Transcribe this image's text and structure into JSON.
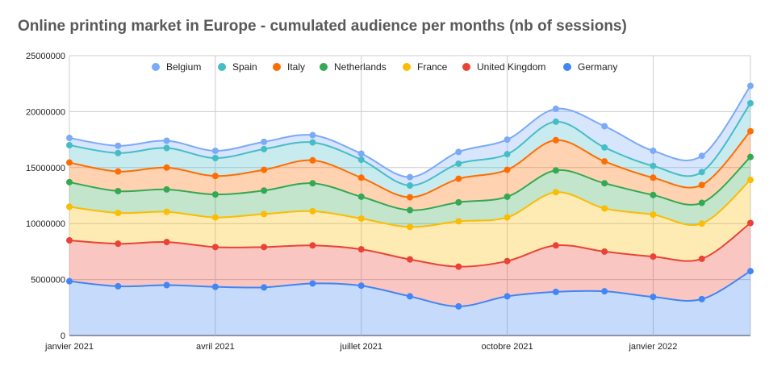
{
  "chart_data": {
    "type": "area",
    "stacked": true,
    "smooth": true,
    "title": "Online printing market in Europe - cumulated audience per months (nb of sessions)",
    "xlabel": "",
    "ylabel": "",
    "ylim": [
      0,
      25000000
    ],
    "yticks": [
      0,
      5000000,
      10000000,
      15000000,
      20000000,
      25000000
    ],
    "ytick_labels": [
      "0",
      "5000000",
      "10000000",
      "15000000",
      "20000000",
      "25000000"
    ],
    "x": [
      0,
      1,
      2,
      3,
      4,
      5,
      6,
      7,
      8,
      9,
      10,
      11,
      12,
      13,
      14
    ],
    "xtick_positions": [
      0,
      3,
      6,
      9,
      12
    ],
    "xtick_labels": [
      "janvier 2021",
      "avril 2021",
      "juillet 2021",
      "octobre 2021",
      "janvier 2022"
    ],
    "grid": true,
    "legend_position": "top",
    "series": [
      {
        "name": "Germany",
        "color": "#4285f4",
        "values": [
          4850000,
          4400000,
          4500000,
          4350000,
          4300000,
          4650000,
          4450000,
          3500000,
          2600000,
          3500000,
          3900000,
          3950000,
          3450000,
          3250000,
          5750000
        ]
      },
      {
        "name": "United Kingdom",
        "color": "#ea4335",
        "values": [
          3650000,
          3800000,
          3850000,
          3550000,
          3600000,
          3400000,
          3250000,
          3300000,
          3550000,
          3150000,
          4150000,
          3550000,
          3600000,
          3600000,
          4300000
        ]
      },
      {
        "name": "France",
        "color": "#fbbc04",
        "values": [
          3000000,
          2750000,
          2700000,
          2650000,
          2950000,
          3050000,
          2750000,
          2900000,
          4050000,
          3900000,
          4750000,
          3850000,
          3750000,
          3150000,
          3850000
        ]
      },
      {
        "name": "Netherlands",
        "color": "#34a853",
        "values": [
          2200000,
          1950000,
          2000000,
          2050000,
          2100000,
          2500000,
          1950000,
          1500000,
          1700000,
          1850000,
          1950000,
          2250000,
          1750000,
          1850000,
          2050000
        ]
      },
      {
        "name": "Italy",
        "color": "#ff6d01",
        "values": [
          1750000,
          1750000,
          1950000,
          1650000,
          1850000,
          2050000,
          1700000,
          1150000,
          2100000,
          2400000,
          2700000,
          1950000,
          1550000,
          1600000,
          2300000
        ]
      },
      {
        "name": "Spain",
        "color": "#46bdc6",
        "values": [
          1550000,
          1650000,
          1750000,
          1600000,
          1850000,
          1600000,
          1600000,
          1050000,
          1350000,
          1400000,
          1650000,
          1250000,
          1050000,
          1150000,
          2500000
        ]
      },
      {
        "name": "Belgium",
        "color": "#7baaf7",
        "values": [
          650000,
          650000,
          650000,
          650000,
          650000,
          650000,
          550000,
          750000,
          1050000,
          1300000,
          1150000,
          1900000,
          1350000,
          1450000,
          1550000
        ]
      }
    ],
    "legend_order": [
      "Belgium",
      "Spain",
      "Italy",
      "Netherlands",
      "France",
      "United Kingdom",
      "Germany"
    ]
  }
}
